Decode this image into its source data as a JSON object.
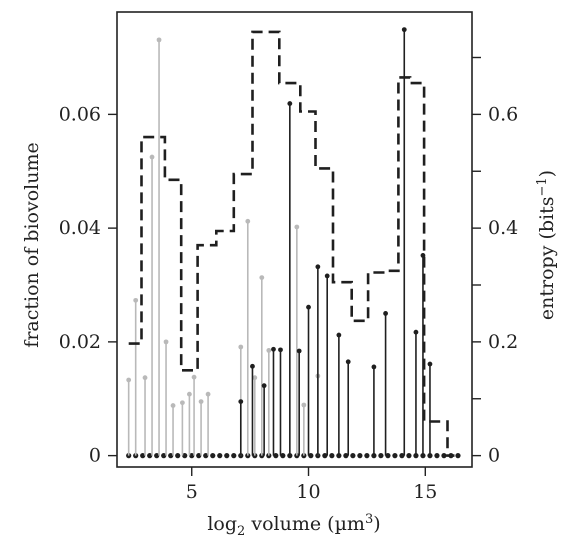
{
  "chart_data": {
    "type": "stem",
    "xlabel_main": "log",
    "xlabel_sub": "2",
    "xlabel_rest": " volume (µm",
    "xlabel_sup": "3",
    "xlabel_close": ")",
    "ylabel": "fraction of biovolume",
    "y2label_main": "entropy (bits",
    "y2label_sup": "−1",
    "y2label_close": ")",
    "xlim": [
      1.8,
      17.0
    ],
    "ylim": [
      -0.002,
      0.078
    ],
    "y2lim": [
      -0.02,
      0.78
    ],
    "x_ticks": [
      5,
      10,
      15
    ],
    "x_tick_labels": [
      "5",
      "10",
      "15"
    ],
    "y_ticks": [
      0,
      0.02,
      0.04,
      0.06
    ],
    "y_tick_labels": [
      "0",
      "0.02",
      "0.04",
      "0.06"
    ],
    "y2_ticks": [
      0,
      0.2,
      0.4,
      0.6
    ],
    "y2_tick_labels": [
      "0",
      "0.2",
      "0.4",
      "0.6"
    ],
    "y2_minor_ticks": [
      0.1,
      0.3,
      0.5,
      0.7
    ],
    "grey_stems": {
      "x": [
        2.3,
        2.6,
        3.0,
        3.3,
        3.6,
        3.9,
        4.2,
        4.6,
        4.9,
        5.1,
        5.4,
        5.7,
        6.0,
        7.1,
        7.4,
        7.7,
        8.0,
        8.3,
        8.6,
        8.9,
        9.2,
        9.5,
        9.8,
        10.1,
        10.4,
        10.7,
        11.0,
        11.6,
        12.2,
        12.8,
        13.1,
        13.4,
        13.7,
        14.0
      ],
      "y": [
        0.0133,
        0.0273,
        0.0137,
        0.0525,
        0.0731,
        0.02,
        0.0088,
        0.0093,
        0.0108,
        0.0138,
        0.0095,
        0.0108,
        0.0,
        0.0191,
        0.0412,
        0.0137,
        0.0313,
        0.0185,
        0.0,
        0.0,
        0.0,
        0.0402,
        0.0089,
        0.0,
        0.014,
        0.0,
        0.0,
        0.0,
        0.0,
        0.0,
        0.0,
        0.0,
        0.0,
        0.0
      ]
    },
    "black_stems": {
      "x": [
        7.1,
        7.6,
        8.1,
        8.5,
        8.8,
        9.2,
        9.6,
        10.0,
        10.4,
        10.8,
        11.3,
        11.7,
        12.8,
        13.3,
        14.1,
        14.6,
        14.9,
        15.2
      ],
      "y": [
        0.0095,
        0.0157,
        0.0123,
        0.0187,
        0.0186,
        0.0619,
        0.0184,
        0.0261,
        0.0332,
        0.0316,
        0.0212,
        0.0165,
        0.0156,
        0.025,
        0.0749,
        0.0217,
        0.0352,
        0.0161
      ]
    },
    "baseline_points": {
      "x": [
        2.3,
        2.6,
        2.9,
        3.2,
        3.5,
        3.8,
        4.1,
        4.4,
        4.7,
        5.0,
        5.3,
        5.6,
        5.9,
        6.2,
        6.5,
        6.8,
        7.1,
        7.4,
        7.7,
        8.0,
        8.3,
        8.6,
        8.9,
        9.2,
        9.5,
        9.8,
        10.1,
        10.4,
        10.7,
        11.0,
        11.3,
        11.6,
        11.9,
        12.2,
        12.5,
        12.8,
        13.1,
        13.4,
        13.7,
        14.0,
        14.3,
        14.6,
        14.9,
        15.2,
        15.5,
        15.8,
        16.1,
        16.4
      ]
    },
    "entropy_step": {
      "x": [
        2.3,
        2.85,
        2.85,
        3.85,
        3.85,
        4.55,
        4.55,
        5.25,
        5.25,
        6.05,
        6.05,
        6.8,
        6.8,
        7.6,
        7.6,
        8.0,
        8.0,
        8.75,
        8.75,
        9.65,
        9.65,
        10.3,
        10.3,
        11.05,
        11.05,
        11.85,
        11.85,
        12.55,
        12.55,
        13.2,
        13.2,
        13.85,
        13.85,
        14.35,
        14.35,
        14.95,
        14.95,
        15.35,
        15.35,
        15.95,
        15.95,
        16.25
      ],
      "y": [
        0.197,
        0.197,
        0.56,
        0.56,
        0.485,
        0.485,
        0.15,
        0.15,
        0.37,
        0.37,
        0.395,
        0.395,
        0.495,
        0.495,
        0.745,
        0.745,
        0.745,
        0.745,
        0.655,
        0.655,
        0.605,
        0.605,
        0.505,
        0.505,
        0.305,
        0.305,
        0.237,
        0.237,
        0.322,
        0.322,
        0.325,
        0.325,
        0.665,
        0.665,
        0.655,
        0.655,
        0.06,
        0.06,
        0.06,
        0.06,
        0.0,
        0.0
      ]
    },
    "colors": {
      "grey": "#b9b9b9",
      "black": "#1f1f1f",
      "axis": "#222222"
    },
    "grid": false,
    "legend": "none"
  }
}
